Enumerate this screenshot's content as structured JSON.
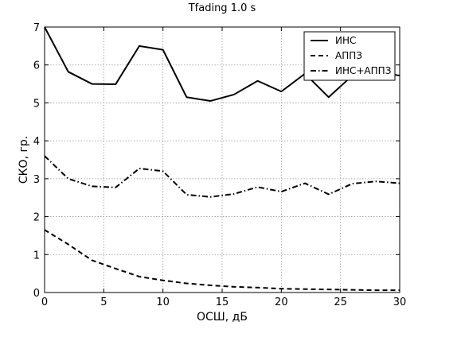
{
  "chart_data": {
    "type": "line",
    "title": "Tfading 1.0 s",
    "xlabel": "ОСШ, дБ",
    "ylabel": "СКО, гр.",
    "xlim": [
      0,
      30
    ],
    "ylim": [
      0,
      7
    ],
    "xticks": [
      0,
      5,
      10,
      15,
      20,
      25,
      30
    ],
    "yticks": [
      0,
      1,
      2,
      3,
      4,
      5,
      6,
      7
    ],
    "grid": true,
    "legend_position": "top-right",
    "x": [
      0,
      2,
      4,
      6,
      8,
      10,
      12,
      14,
      16,
      18,
      20,
      22,
      24,
      26,
      28,
      30
    ],
    "series": [
      {
        "name": "ИНС",
        "style": "solid",
        "color": "#000000",
        "values": [
          7.0,
          5.82,
          5.5,
          5.49,
          6.5,
          6.4,
          5.15,
          5.05,
          5.22,
          5.58,
          5.3,
          5.77,
          5.15,
          5.72,
          5.82,
          5.72
        ]
      },
      {
        "name": "АППЗ",
        "style": "dashed",
        "color": "#000000",
        "values": [
          1.65,
          1.27,
          0.85,
          0.63,
          0.42,
          0.32,
          0.24,
          0.19,
          0.15,
          0.13,
          0.1,
          0.09,
          0.08,
          0.07,
          0.06,
          0.06
        ]
      },
      {
        "name": "ИНС+АППЗ",
        "style": "dashdot",
        "color": "#000000",
        "values": [
          3.6,
          3.0,
          2.8,
          2.77,
          3.27,
          3.2,
          2.58,
          2.52,
          2.6,
          2.78,
          2.66,
          2.88,
          2.59,
          2.87,
          2.93,
          2.88
        ]
      }
    ]
  }
}
